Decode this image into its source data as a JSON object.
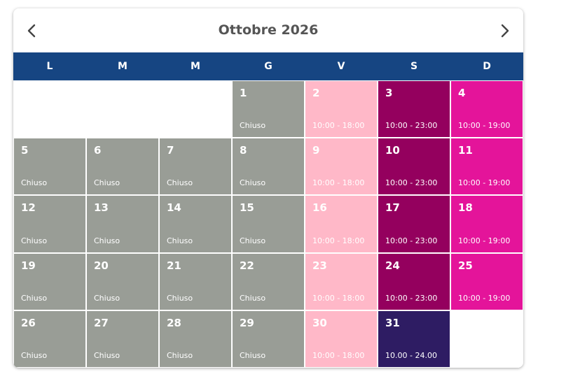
{
  "header": {
    "title": "Ottobre 2026",
    "prev_icon": "chevron-left-icon",
    "next_icon": "chevron-right-icon"
  },
  "weekdays": [
    "L",
    "M",
    "M",
    "G",
    "V",
    "S",
    "D"
  ],
  "status_colors": {
    "chiuso": "#999d96",
    "pink": "#ffb8c8",
    "plum": "#94005e",
    "magenta": "#e4149a",
    "special": "#2e1c63",
    "weekday_bar": "#164582"
  },
  "days": [
    {
      "day": "1",
      "hours": "Chiuso",
      "status": "chiuso"
    },
    {
      "day": "2",
      "hours": "10:00 - 18:00",
      "status": "pink"
    },
    {
      "day": "3",
      "hours": "10:00 - 23:00",
      "status": "plum"
    },
    {
      "day": "4",
      "hours": "10:00 - 19:00",
      "status": "magenta"
    },
    {
      "day": "5",
      "hours": "Chiuso",
      "status": "chiuso"
    },
    {
      "day": "6",
      "hours": "Chiuso",
      "status": "chiuso"
    },
    {
      "day": "7",
      "hours": "Chiuso",
      "status": "chiuso"
    },
    {
      "day": "8",
      "hours": "Chiuso",
      "status": "chiuso"
    },
    {
      "day": "9",
      "hours": "10:00 - 18:00",
      "status": "pink"
    },
    {
      "day": "10",
      "hours": "10:00 - 23:00",
      "status": "plum"
    },
    {
      "day": "11",
      "hours": "10:00 - 19:00",
      "status": "magenta"
    },
    {
      "day": "12",
      "hours": "Chiuso",
      "status": "chiuso"
    },
    {
      "day": "13",
      "hours": "Chiuso",
      "status": "chiuso"
    },
    {
      "day": "14",
      "hours": "Chiuso",
      "status": "chiuso"
    },
    {
      "day": "15",
      "hours": "Chiuso",
      "status": "chiuso"
    },
    {
      "day": "16",
      "hours": "10:00 - 18:00",
      "status": "pink"
    },
    {
      "day": "17",
      "hours": "10:00 - 23:00",
      "status": "plum"
    },
    {
      "day": "18",
      "hours": "10:00 - 19:00",
      "status": "magenta"
    },
    {
      "day": "19",
      "hours": "Chiuso",
      "status": "chiuso"
    },
    {
      "day": "20",
      "hours": "Chiuso",
      "status": "chiuso"
    },
    {
      "day": "21",
      "hours": "Chiuso",
      "status": "chiuso"
    },
    {
      "day": "22",
      "hours": "Chiuso",
      "status": "chiuso"
    },
    {
      "day": "23",
      "hours": "10:00 - 18:00",
      "status": "pink"
    },
    {
      "day": "24",
      "hours": "10:00 - 23:00",
      "status": "plum"
    },
    {
      "day": "25",
      "hours": "10:00 - 19:00",
      "status": "magenta"
    },
    {
      "day": "26",
      "hours": "Chiuso",
      "status": "chiuso"
    },
    {
      "day": "27",
      "hours": "Chiuso",
      "status": "chiuso"
    },
    {
      "day": "28",
      "hours": "Chiuso",
      "status": "chiuso"
    },
    {
      "day": "29",
      "hours": "Chiuso",
      "status": "chiuso"
    },
    {
      "day": "30",
      "hours": "10:00 - 18:00",
      "status": "pink"
    },
    {
      "day": "31",
      "hours": "10.00 - 24.00",
      "status": "special"
    }
  ]
}
